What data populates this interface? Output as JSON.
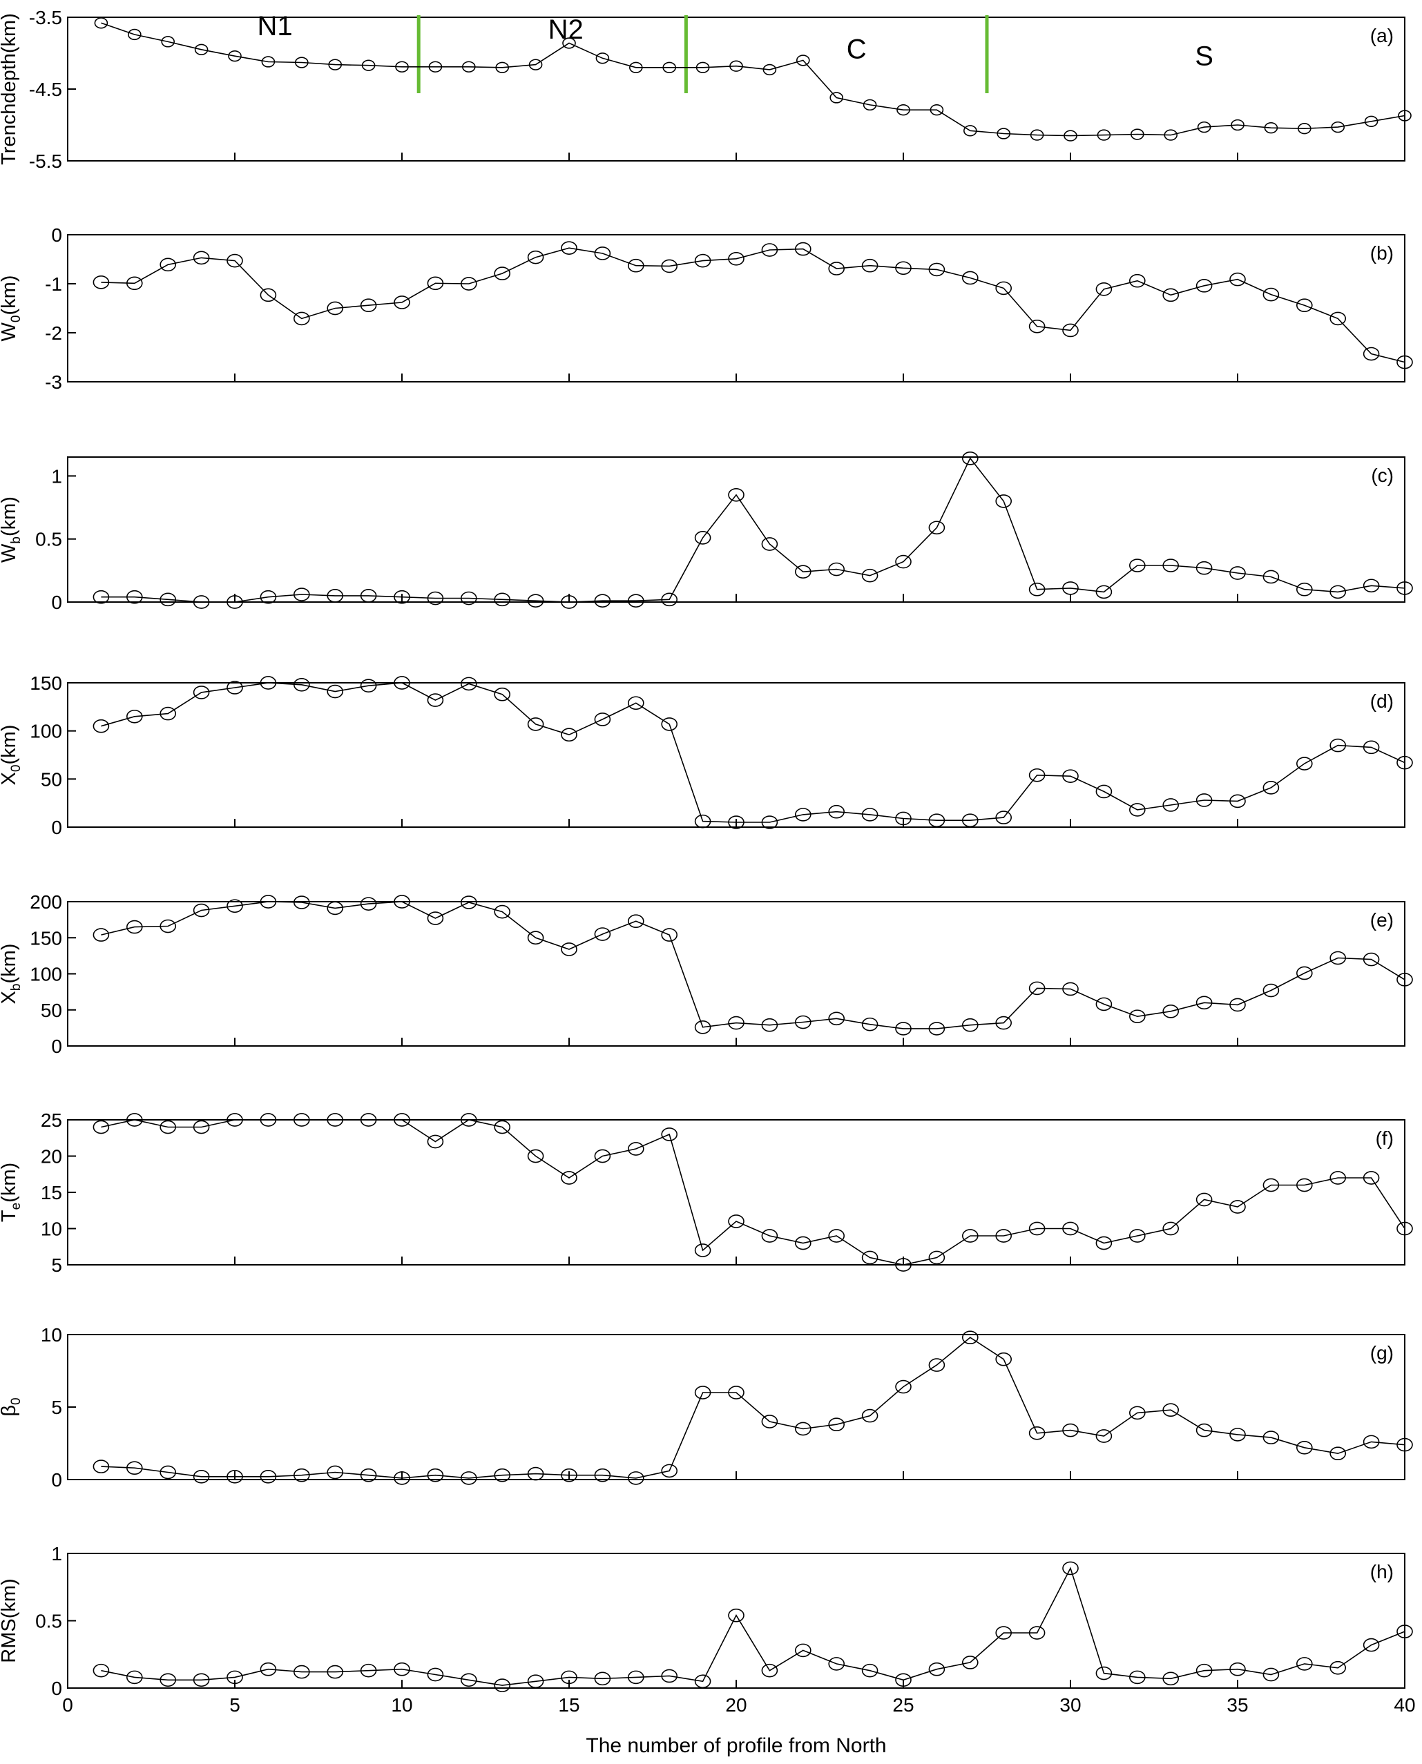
{
  "chart_data": [
    {
      "id": "a",
      "type": "line",
      "tag": "(a)",
      "ylabel": "Trenchdepth(km)",
      "ylim": [
        -5.5,
        -3.5
      ],
      "yticks": [
        -3.5,
        -4.5,
        -5.5
      ],
      "ytick_labels": [
        "-3.5",
        "-4.5",
        "-5.5"
      ],
      "x": [
        1,
        2,
        3,
        4,
        5,
        6,
        7,
        8,
        9,
        10,
        11,
        12,
        13,
        14,
        15,
        16,
        17,
        18,
        19,
        20,
        21,
        22,
        23,
        24,
        25,
        26,
        27,
        28,
        29,
        30,
        31,
        32,
        33,
        34,
        35,
        36,
        37,
        38,
        39,
        40
      ],
      "values": [
        -3.58,
        -3.74,
        -3.84,
        -3.95,
        -4.04,
        -4.12,
        -4.13,
        -4.16,
        -4.17,
        -4.19,
        -4.19,
        -4.19,
        -4.2,
        -4.16,
        -3.86,
        -4.07,
        -4.2,
        -4.2,
        -4.2,
        -4.18,
        -4.23,
        -4.1,
        -4.62,
        -4.72,
        -4.79,
        -4.79,
        -5.08,
        -5.12,
        -5.14,
        -5.15,
        -5.14,
        -5.13,
        -5.14,
        -5.03,
        -5.0,
        -5.04,
        -5.05,
        -5.03,
        -4.95,
        -4.87
      ],
      "dividers": [
        10.5,
        18.5,
        27.5
      ],
      "divider_color": "#66bb33",
      "regions": [
        {
          "label": "N1",
          "x": 6.2,
          "y": -3.75
        },
        {
          "label": "N2",
          "x": 14.9,
          "y": -3.8
        },
        {
          "label": "C",
          "x": 23.6,
          "y": -4.07
        },
        {
          "label": "S",
          "x": 34.0,
          "y": -4.17
        }
      ]
    },
    {
      "id": "b",
      "type": "line",
      "tag": "(b)",
      "ylabel": "W",
      "ylabel_sub": "0",
      "ylabel_unit": "(km)",
      "ylim": [
        -3,
        0
      ],
      "yticks": [
        0,
        -1,
        -2,
        -3
      ],
      "ytick_labels": [
        "0",
        "-1",
        "-2",
        "-3"
      ],
      "x": [
        1,
        2,
        3,
        4,
        5,
        6,
        7,
        8,
        9,
        10,
        11,
        12,
        13,
        14,
        15,
        16,
        17,
        18,
        19,
        20,
        21,
        22,
        23,
        24,
        25,
        26,
        27,
        28,
        29,
        30,
        31,
        32,
        33,
        34,
        35,
        36,
        37,
        38,
        39,
        40
      ],
      "values": [
        -0.97,
        -0.99,
        -0.61,
        -0.47,
        -0.53,
        -1.23,
        -1.71,
        -1.5,
        -1.44,
        -1.38,
        -0.99,
        -1.0,
        -0.79,
        -0.46,
        -0.27,
        -0.38,
        -0.63,
        -0.64,
        -0.53,
        -0.49,
        -0.31,
        -0.29,
        -0.69,
        -0.63,
        -0.68,
        -0.71,
        -0.88,
        -1.09,
        -1.87,
        -1.95,
        -1.11,
        -0.94,
        -1.23,
        -1.04,
        -0.91,
        -1.22,
        -1.44,
        -1.71,
        -2.43,
        -2.6
      ]
    },
    {
      "id": "c",
      "type": "line",
      "tag": "(c)",
      "ylabel": "W",
      "ylabel_sub": "b",
      "ylabel_unit": "(km)",
      "ylim": [
        0,
        1.15
      ],
      "yticks": [
        0,
        0.5,
        1
      ],
      "ytick_labels": [
        "0",
        "0.5",
        "1"
      ],
      "x": [
        1,
        2,
        3,
        4,
        5,
        6,
        7,
        8,
        9,
        10,
        11,
        12,
        13,
        14,
        15,
        16,
        17,
        18,
        19,
        20,
        21,
        22,
        23,
        24,
        25,
        26,
        27,
        28,
        29,
        30,
        31,
        32,
        33,
        34,
        35,
        36,
        37,
        38,
        39,
        40
      ],
      "values": [
        0.04,
        0.04,
        0.02,
        0.0,
        0.0,
        0.04,
        0.06,
        0.05,
        0.05,
        0.04,
        0.03,
        0.03,
        0.02,
        0.01,
        0.0,
        0.01,
        0.01,
        0.02,
        0.51,
        0.85,
        0.46,
        0.24,
        0.26,
        0.21,
        0.32,
        0.59,
        1.14,
        0.8,
        0.1,
        0.11,
        0.08,
        0.29,
        0.29,
        0.27,
        0.23,
        0.2,
        0.1,
        0.08,
        0.13,
        0.11
      ]
    },
    {
      "id": "d",
      "type": "line",
      "tag": "(d)",
      "ylabel": "X",
      "ylabel_sub": "0",
      "ylabel_unit": "(km)",
      "ylim": [
        0,
        150
      ],
      "yticks": [
        0,
        50,
        100,
        150
      ],
      "ytick_labels": [
        "0",
        "50",
        "100",
        "150"
      ],
      "x": [
        1,
        2,
        3,
        4,
        5,
        6,
        7,
        8,
        9,
        10,
        11,
        12,
        13,
        14,
        15,
        16,
        17,
        18,
        19,
        20,
        21,
        22,
        23,
        24,
        25,
        26,
        27,
        28,
        29,
        30,
        31,
        32,
        33,
        34,
        35,
        36,
        37,
        38,
        39,
        40
      ],
      "values": [
        105,
        115,
        118,
        140,
        145,
        150,
        148,
        141,
        147,
        150,
        132,
        149,
        138,
        107,
        96,
        112,
        129,
        107,
        6,
        5,
        5,
        13,
        16,
        13,
        9,
        7,
        7,
        10,
        54,
        53,
        37,
        18,
        23,
        28,
        27,
        41,
        66,
        85,
        83,
        67
      ]
    },
    {
      "id": "e",
      "type": "line",
      "tag": "(e)",
      "ylabel": "X",
      "ylabel_sub": "b",
      "ylabel_unit": "(km)",
      "ylim": [
        0,
        200
      ],
      "yticks": [
        0,
        50,
        100,
        150,
        200
      ],
      "ytick_labels": [
        "0",
        "50",
        "100",
        "150",
        "200"
      ],
      "x": [
        1,
        2,
        3,
        4,
        5,
        6,
        7,
        8,
        9,
        10,
        11,
        12,
        13,
        14,
        15,
        16,
        17,
        18,
        19,
        20,
        21,
        22,
        23,
        24,
        25,
        26,
        27,
        28,
        29,
        30,
        31,
        32,
        33,
        34,
        35,
        36,
        37,
        38,
        39,
        40
      ],
      "values": [
        154,
        165,
        166,
        188,
        194,
        200,
        199,
        191,
        197,
        200,
        177,
        199,
        186,
        150,
        134,
        155,
        173,
        154,
        26,
        32,
        29,
        33,
        38,
        30,
        24,
        24,
        29,
        32,
        80,
        79,
        58,
        41,
        48,
        60,
        57,
        77,
        101,
        122,
        120,
        92
      ]
    },
    {
      "id": "f",
      "type": "line",
      "tag": "(f)",
      "ylabel": "T",
      "ylabel_sub": "e",
      "ylabel_unit": "(km)",
      "ylim": [
        5,
        25
      ],
      "yticks": [
        5,
        10,
        15,
        20,
        25
      ],
      "ytick_labels": [
        "5",
        "10",
        "15",
        "20",
        "25"
      ],
      "x": [
        1,
        2,
        3,
        4,
        5,
        6,
        7,
        8,
        9,
        10,
        11,
        12,
        13,
        14,
        15,
        16,
        17,
        18,
        19,
        20,
        21,
        22,
        23,
        24,
        25,
        26,
        27,
        28,
        29,
        30,
        31,
        32,
        33,
        34,
        35,
        36,
        37,
        38,
        39,
        40
      ],
      "values": [
        24,
        25,
        24,
        24,
        25,
        25,
        25,
        25,
        25,
        25,
        22,
        25,
        24,
        20,
        17,
        20,
        21,
        23,
        7,
        11,
        9,
        8,
        9,
        6,
        5,
        6,
        9,
        9,
        10,
        10,
        8,
        9,
        10,
        14,
        13,
        16,
        16,
        17,
        17,
        10
      ]
    },
    {
      "id": "g",
      "type": "line",
      "tag": "(g)",
      "ylabel": "β",
      "ylabel_sub": "0",
      "ylabel_unit": "",
      "ylim": [
        0,
        10
      ],
      "yticks": [
        0,
        5,
        10
      ],
      "ytick_labels": [
        "0",
        "5",
        "10"
      ],
      "x": [
        1,
        2,
        3,
        4,
        5,
        6,
        7,
        8,
        9,
        10,
        11,
        12,
        13,
        14,
        15,
        16,
        17,
        18,
        19,
        20,
        21,
        22,
        23,
        24,
        25,
        26,
        27,
        28,
        29,
        30,
        31,
        32,
        33,
        34,
        35,
        36,
        37,
        38,
        39,
        40
      ],
      "values": [
        0.9,
        0.8,
        0.5,
        0.2,
        0.2,
        0.2,
        0.3,
        0.5,
        0.3,
        0.1,
        0.3,
        0.1,
        0.3,
        0.4,
        0.3,
        0.3,
        0.1,
        0.6,
        6.0,
        6.0,
        4.0,
        3.5,
        3.8,
        4.4,
        6.4,
        7.9,
        9.8,
        8.3,
        3.2,
        3.4,
        3.0,
        4.6,
        4.8,
        3.4,
        3.1,
        2.9,
        2.2,
        1.8,
        2.6,
        2.4
      ]
    },
    {
      "id": "h",
      "type": "line",
      "tag": "(h)",
      "ylabel": "RMS(km)",
      "ylim": [
        0,
        1
      ],
      "yticks": [
        0,
        0.5,
        1
      ],
      "ytick_labels": [
        "0",
        "0.5",
        "1"
      ],
      "x": [
        1,
        2,
        3,
        4,
        5,
        6,
        7,
        8,
        9,
        10,
        11,
        12,
        13,
        14,
        15,
        16,
        17,
        18,
        19,
        20,
        21,
        22,
        23,
        24,
        25,
        26,
        27,
        28,
        29,
        30,
        31,
        32,
        33,
        34,
        35,
        36,
        37,
        38,
        39,
        40
      ],
      "values": [
        0.13,
        0.08,
        0.06,
        0.06,
        0.08,
        0.14,
        0.12,
        0.12,
        0.13,
        0.14,
        0.1,
        0.06,
        0.02,
        0.05,
        0.08,
        0.07,
        0.08,
        0.09,
        0.05,
        0.54,
        0.13,
        0.28,
        0.18,
        0.13,
        0.06,
        0.14,
        0.19,
        0.41,
        0.41,
        0.89,
        0.11,
        0.08,
        0.07,
        0.13,
        0.14,
        0.1,
        0.18,
        0.15,
        0.32,
        0.42
      ]
    }
  ],
  "x_axis": {
    "xlim": [
      0,
      40
    ],
    "ticks": [
      0,
      5,
      10,
      15,
      20,
      25,
      30,
      35,
      40
    ],
    "tick_labels": [
      "0",
      "5",
      "10",
      "15",
      "20",
      "25",
      "30",
      "35",
      "40"
    ],
    "label": "The number of profile from North"
  },
  "style": {
    "line_color": "#000000",
    "marker": "open-circle",
    "background": "#ffffff"
  }
}
